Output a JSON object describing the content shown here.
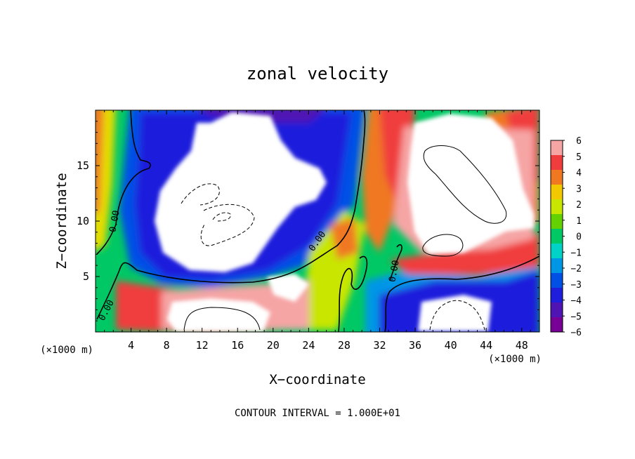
{
  "chart_data": {
    "type": "heatmap",
    "title": "zonal velocity",
    "xlabel": "X−coordinate",
    "ylabel": "Z−coordinate",
    "x_unit_left": "(×1000 m)",
    "x_unit_right": "(×1000 m)",
    "xlim": [
      0,
      50
    ],
    "ylim": [
      0,
      20
    ],
    "x_ticks": [
      "4",
      "8",
      "12",
      "16",
      "20",
      "24",
      "28",
      "32",
      "36",
      "40",
      "44",
      "48"
    ],
    "y_ticks": [
      "5",
      "10",
      "15"
    ],
    "colorbar": {
      "labels": [
        "6",
        "5",
        "4",
        "3",
        "2",
        "1",
        "0",
        "−1",
        "−2",
        "−3",
        "−4",
        "−5",
        "−6"
      ],
      "min": -6,
      "max": 6,
      "colors": [
        "#f6a5a5",
        "#f03c3c",
        "#f07820",
        "#f2c800",
        "#c8e600",
        "#64d200",
        "#00c864",
        "#00d2c8",
        "#0096e6",
        "#0050e6",
        "#1e1edc",
        "#5014b4",
        "#780096"
      ]
    },
    "contour_labels": [
      "0.00",
      "0.00",
      "0.00",
      "0.00"
    ],
    "footer": "CONTOUR INTERVAL = 1.000E+01"
  }
}
